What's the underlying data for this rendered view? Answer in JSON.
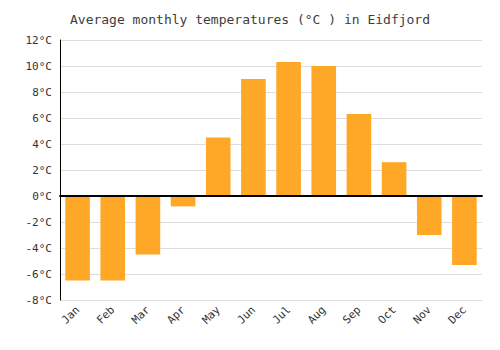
{
  "chart_data": {
    "type": "bar",
    "title": "Average monthly temperatures (°C ) in Eidfjord",
    "categories": [
      "Jan",
      "Feb",
      "Mar",
      "Apr",
      "May",
      "Jun",
      "Jul",
      "Aug",
      "Sep",
      "Oct",
      "Nov",
      "Dec"
    ],
    "values": [
      -6.5,
      -6.5,
      -4.5,
      -0.8,
      4.5,
      9.0,
      10.3,
      10.0,
      6.3,
      2.6,
      -3.0,
      -5.3
    ],
    "color": "#FFA726",
    "ylim": [
      -8,
      12
    ],
    "yticks": [
      {
        "value": -8,
        "label": "-8°C"
      },
      {
        "value": -6,
        "label": "-6°C"
      },
      {
        "value": -4,
        "label": "-4°C"
      },
      {
        "value": -2,
        "label": "-2°C"
      },
      {
        "value": 0,
        "label": "0°C"
      },
      {
        "value": 2,
        "label": "2°C"
      },
      {
        "value": 4,
        "label": "4°C"
      },
      {
        "value": 6,
        "label": "6°C"
      },
      {
        "value": 8,
        "label": "8°C"
      },
      {
        "value": 10,
        "label": "10°C"
      },
      {
        "value": 12,
        "label": "12°C"
      }
    ],
    "grid": true
  }
}
